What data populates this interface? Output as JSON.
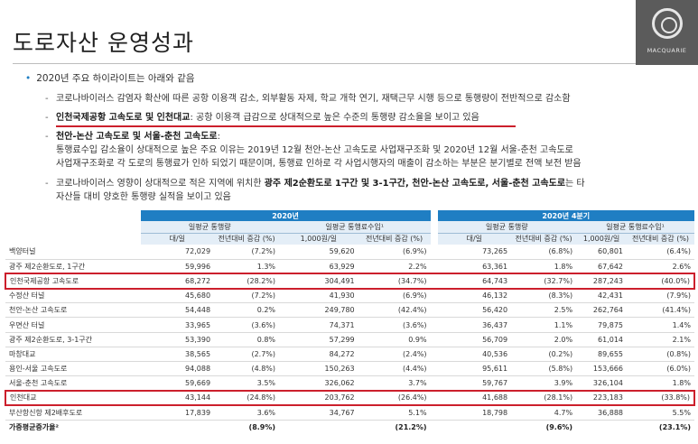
{
  "page": {
    "title": "도로자산 운영성과"
  },
  "logo": {
    "text": "MACQUARIE"
  },
  "bullets": {
    "main1": "2020년 주요 하이라이트는 아래와 같음",
    "s1": "코로나바이러스 감염자 확산에 따른 공항 이용객 감소, 외부활동 자제, 학교 개학 연기, 재택근무 시행 등으로 통행량이 전반적으로 감소함",
    "s2_bold": "인천국제공항 고속도로 및 인천대교",
    "s2_rest": ": 공항 이용객 급감으로 상대적으로 높은 수준의 통행량 감소율을 보이고 있음",
    "s3_bold": "천안-논산 고속도로 및 서울-춘천 고속도로",
    "s3_rest": ":",
    "s3_line2": "통행료수입 감소율이 상대적으로 높은 주요 이유는 2019년 12월 천안-논산 고속도로 사업재구조화 및 2020년 12월 서울-춘천 고속도로",
    "s3_line3": "사업재구조화로 각 도로의 통행료가 인하 되었기 때문이며, 통행료 인하로 각 사업시행자의 매출이 감소하는 부분은 분기별로 전액 보전 받음",
    "s4_a": "코로나바이러스 영향이 상대적으로 적은 지역에 위치한 ",
    "s4_bold": "광주 제2순환도로 1구간 및 3-1구간, 천안-논산 고속도로, 서울-춘천 고속도로",
    "s4_b": "는 타",
    "s4_line2": "자산들 대비 양호한 통행량 실적을 보이고 있음"
  },
  "table": {
    "period1": "2020년",
    "period2": "2020년 4분기",
    "grp_traffic": "일평균 통행량",
    "grp_revenue": "일평균 통행료수입¹",
    "unit_traffic": "대/일",
    "unit_revenue": "1,000원/일",
    "unit_yoy": "전년대비 증감 (%)",
    "rows": [
      [
        "백양터널",
        "72,029",
        "(7.2%)",
        "59,620",
        "(6.9%)",
        "73,265",
        "(6.8%)",
        "60,801",
        "(6.4%)"
      ],
      [
        "광주 제2순환도로, 1구간",
        "59,996",
        "1.3%",
        "63,929",
        "2.2%",
        "63,361",
        "1.8%",
        "67,642",
        "2.6%"
      ],
      [
        "인천국제공항 고속도로",
        "68,272",
        "(28.2%)",
        "304,491",
        "(34.7%)",
        "64,743",
        "(32.7%)",
        "287,243",
        "(40.0%)"
      ],
      [
        "수정산 터널",
        "45,680",
        "(7.2%)",
        "41,930",
        "(6.9%)",
        "46,132",
        "(8.3%)",
        "42,431",
        "(7.9%)"
      ],
      [
        "천안-논산 고속도로",
        "54,448",
        "0.2%",
        "249,780",
        "(42.4%)",
        "56,420",
        "2.5%",
        "262,764",
        "(41.4%)"
      ],
      [
        "우면산 터널",
        "33,965",
        "(3.6%)",
        "74,371",
        "(3.6%)",
        "36,437",
        "1.1%",
        "79,875",
        "1.4%"
      ],
      [
        "광주 제2순환도로, 3-1구간",
        "53,390",
        "0.8%",
        "57,299",
        "0.9%",
        "56,709",
        "2.0%",
        "61,014",
        "2.1%"
      ],
      [
        "마창대교",
        "38,565",
        "(2.7%)",
        "84,272",
        "(2.4%)",
        "40,536",
        "(0.2%)",
        "89,655",
        "(0.8%)"
      ],
      [
        "용인-서울 고속도로",
        "94,088",
        "(4.8%)",
        "150,263",
        "(4.4%)",
        "95,611",
        "(5.8%)",
        "153,666",
        "(6.0%)"
      ],
      [
        "서울-춘천 고속도로",
        "59,669",
        "3.5%",
        "326,062",
        "3.7%",
        "59,767",
        "3.9%",
        "326,104",
        "1.8%"
      ],
      [
        "인천대교",
        "43,144",
        "(24.8%)",
        "203,762",
        "(26.4%)",
        "41,688",
        "(28.1%)",
        "223,183",
        "(33.8%)"
      ],
      [
        "부산항신항 제2배후도로",
        "17,839",
        "3.6%",
        "34,767",
        "5.1%",
        "18,798",
        "4.7%",
        "36,888",
        "5.5%"
      ]
    ],
    "total": [
      "가중평균증가율²",
      "(8.9%)",
      "(21.2%)",
      "(9.6%)",
      "(23.1%)"
    ]
  }
}
